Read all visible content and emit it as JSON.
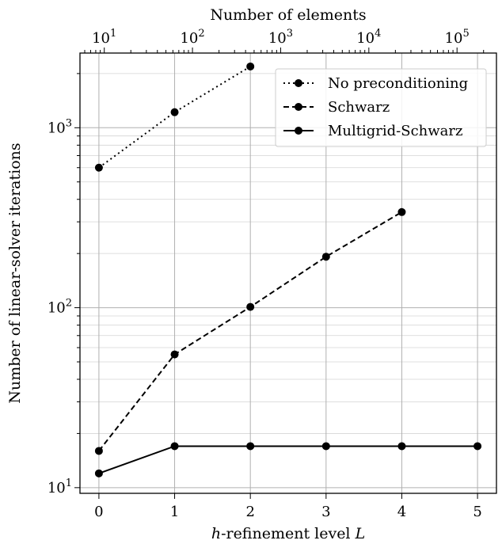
{
  "chart_data": {
    "type": "line",
    "xlabel_prefix": "h",
    "xlabel_mid": "-refinement level ",
    "xlabel_var": "L",
    "ylabel": "Number of linear-solver iterations",
    "top_xlabel": "Number of elements",
    "x_ticks": [
      0,
      1,
      2,
      3,
      4,
      5
    ],
    "xlim": [
      -0.25,
      5.25
    ],
    "ylim": [
      9.3,
      2600
    ],
    "yscale": "log",
    "top_xscale": "log",
    "top_xlim": [
      5.3,
      280000
    ],
    "top_major_ticks": [
      10,
      100,
      1000,
      10000,
      100000
    ],
    "grid": true,
    "legend_position": "top-right",
    "series": [
      {
        "name": "No preconditioning",
        "style": "dotted",
        "x": [
          0,
          1,
          2
        ],
        "y": [
          600,
          1220,
          2190
        ]
      },
      {
        "name": "Schwarz",
        "style": "dashed",
        "x": [
          0,
          1,
          2,
          3,
          4
        ],
        "y": [
          16,
          55,
          101,
          192,
          340
        ]
      },
      {
        "name": "Multigrid-Schwarz",
        "style": "solid",
        "x": [
          0,
          1,
          2,
          3,
          4,
          5
        ],
        "y": [
          12,
          17,
          17,
          17,
          17,
          17
        ]
      }
    ]
  }
}
